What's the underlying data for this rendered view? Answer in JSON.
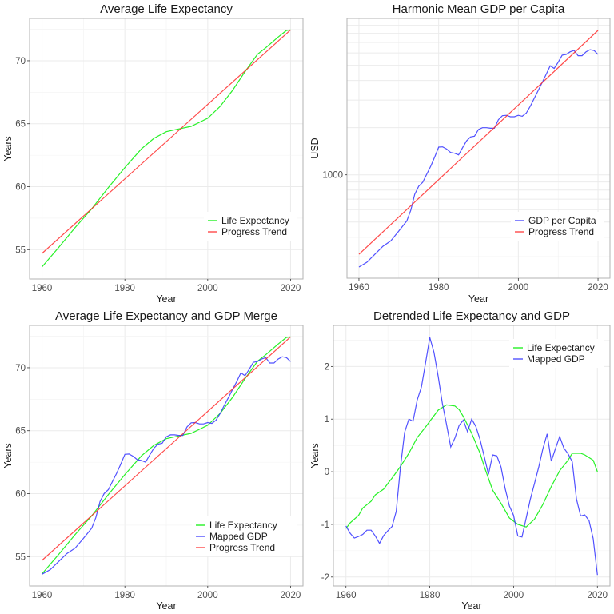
{
  "chart_data": [
    {
      "type": "line",
      "title": "Average Life Expectancy",
      "xlabel": "Year",
      "ylabel": "Years",
      "xlim": [
        1957,
        2023
      ],
      "ylim": [
        52.67,
        73.36
      ],
      "x_ticks": [
        1960,
        1980,
        2000,
        2020
      ],
      "y_ticks": [
        55,
        60,
        65,
        70
      ],
      "grid": true,
      "legend_position": "bottom-right",
      "series": [
        {
          "name": "Life Expectancy",
          "color": "#00ee00",
          "x": [
            1960,
            1964,
            1968,
            1972,
            1976,
            1980,
            1984,
            1987,
            1990,
            1993,
            1996,
            2000,
            2003,
            2006,
            2009,
            2012,
            2014,
            2017,
            2019,
            2020
          ],
          "y": [
            53.63,
            55.17,
            56.76,
            58.24,
            59.93,
            61.52,
            63.0,
            63.84,
            64.37,
            64.58,
            64.79,
            65.43,
            66.38,
            67.65,
            69.13,
            70.51,
            71.03,
            71.88,
            72.41,
            72.45
          ]
        },
        {
          "name": "Progress Trend",
          "color": "#ff2a2a",
          "x": [
            1960,
            2020
          ],
          "y": [
            54.7,
            72.45
          ]
        }
      ]
    },
    {
      "type": "line",
      "title": "Harmonic Mean GDP per Capita",
      "xlabel": "Year",
      "ylabel": "USD",
      "y_scale": "log10",
      "xlim": [
        1957,
        2023
      ],
      "ylim": [
        219,
        9960
      ],
      "x_ticks": [
        1960,
        1980,
        2000,
        2020
      ],
      "y_ticks": [
        1000
      ],
      "grid": true,
      "legend_position": "bottom-right",
      "series": [
        {
          "name": "GDP per Capita",
          "color": "#3333ff",
          "x": [
            1960,
            1962,
            1964,
            1966,
            1968,
            1970,
            1972,
            1973,
            1974,
            1975,
            1976,
            1977,
            1978,
            1979,
            1980,
            1981,
            1982,
            1983,
            1984,
            1985,
            1986,
            1987,
            1988,
            1989,
            1990,
            1991,
            1992,
            1993,
            1994,
            1995,
            1996,
            1997,
            1998,
            1999,
            2000,
            2001,
            2002,
            2003,
            2004,
            2005,
            2006,
            2007,
            2008,
            2009,
            2010,
            2011,
            2012,
            2013,
            2014,
            2015,
            2016,
            2017,
            2018,
            2019,
            2020
          ],
          "y": [
            258,
            277,
            311,
            350,
            379,
            438,
            508,
            594,
            751,
            845,
            896,
            1008,
            1134,
            1300,
            1503,
            1509,
            1462,
            1389,
            1373,
            1341,
            1491,
            1645,
            1744,
            1765,
            1946,
            2000,
            2000,
            1984,
            1984,
            2250,
            2385,
            2400,
            2350,
            2350,
            2400,
            2366,
            2480,
            2740,
            3080,
            3460,
            3890,
            4380,
            4970,
            4780,
            5230,
            5810,
            5870,
            6100,
            6220,
            5760,
            5760,
            6100,
            6290,
            6220,
            5870
          ]
        },
        {
          "name": "Progress Trend",
          "color": "#ff2a2a",
          "x": [
            1960,
            2020
          ],
          "y": [
            311,
            8350
          ]
        }
      ]
    },
    {
      "type": "line",
      "title": "Average Life Expectancy and GDP Merge",
      "xlabel": "Year",
      "ylabel": "Years",
      "xlim": [
        1957,
        2023
      ],
      "ylim": [
        52.67,
        73.36
      ],
      "x_ticks": [
        1960,
        1980,
        2000,
        2020
      ],
      "y_ticks": [
        55,
        60,
        65,
        70
      ],
      "grid": true,
      "legend_position": "bottom-right",
      "series": [
        {
          "name": "Life Expectancy",
          "color": "#00ee00",
          "x": [
            1960,
            1964,
            1968,
            1972,
            1976,
            1980,
            1984,
            1987,
            1990,
            1993,
            1996,
            2000,
            2003,
            2006,
            2009,
            2012,
            2014,
            2017,
            2019,
            2020
          ],
          "y": [
            53.63,
            55.17,
            56.76,
            58.24,
            59.93,
            61.52,
            63.0,
            63.84,
            64.37,
            64.58,
            64.79,
            65.43,
            66.38,
            67.65,
            69.13,
            70.51,
            71.03,
            71.88,
            72.41,
            72.45
          ]
        },
        {
          "name": "Mapped GDP",
          "color": "#3333ff",
          "x": [
            1960,
            1962,
            1964,
            1966,
            1968,
            1970,
            1972,
            1973,
            1974,
            1975,
            1976,
            1977,
            1978,
            1979,
            1980,
            1981,
            1982,
            1983,
            1984,
            1985,
            1986,
            1987,
            1988,
            1989,
            1990,
            1991,
            1992,
            1993,
            1994,
            1995,
            1996,
            1997,
            1998,
            1999,
            2000,
            2001,
            2002,
            2003,
            2004,
            2005,
            2006,
            2007,
            2008,
            2009,
            2010,
            2011,
            2012,
            2013,
            2014,
            2015,
            2016,
            2017,
            2018,
            2019,
            2020
          ],
          "y": [
            53.6,
            53.97,
            54.61,
            55.24,
            55.68,
            56.45,
            57.26,
            58.11,
            59.38,
            60.01,
            60.32,
            60.96,
            61.61,
            62.34,
            63.12,
            63.15,
            62.97,
            62.7,
            62.64,
            62.5,
            63.08,
            63.61,
            63.93,
            64.0,
            64.52,
            64.67,
            64.67,
            64.63,
            64.63,
            65.3,
            65.63,
            65.65,
            65.54,
            65.54,
            65.65,
            65.58,
            65.83,
            66.37,
            67.01,
            67.63,
            68.27,
            68.9,
            69.59,
            69.37,
            69.86,
            70.43,
            70.49,
            70.69,
            70.8,
            70.38,
            70.38,
            70.69,
            70.87,
            70.8,
            70.49
          ]
        },
        {
          "name": "Progress Trend",
          "color": "#ff2a2a",
          "x": [
            1960,
            2020
          ],
          "y": [
            54.7,
            72.45
          ]
        }
      ]
    },
    {
      "type": "line",
      "title": "Detrended Life Expectancy and GDP",
      "xlabel": "Year",
      "ylabel": "Years",
      "xlim": [
        1957,
        2023
      ],
      "ylim": [
        -2.17,
        2.78
      ],
      "x_ticks": [
        1960,
        1980,
        2000,
        2020
      ],
      "y_ticks": [
        -2,
        -1,
        0,
        1,
        2
      ],
      "grid": true,
      "legend_position": "top-right",
      "series": [
        {
          "name": "Life Expectancy",
          "color": "#00ee00",
          "x": [
            1960,
            1961,
            1963,
            1964,
            1966,
            1967,
            1969,
            1970,
            1971,
            1973,
            1975,
            1977,
            1979,
            1980,
            1982,
            1984,
            1986,
            1987,
            1988,
            1990,
            1992,
            1993,
            1995,
            1997,
            1999,
            2001,
            2003,
            2005,
            2007,
            2009,
            2011,
            2013,
            2014,
            2016,
            2017,
            2019,
            2020
          ],
          "y": [
            -1.08,
            -0.97,
            -0.83,
            -0.69,
            -0.56,
            -0.44,
            -0.33,
            -0.22,
            -0.12,
            0.1,
            0.35,
            0.65,
            0.85,
            0.96,
            1.17,
            1.27,
            1.25,
            1.18,
            1.05,
            0.73,
            0.35,
            0.1,
            -0.35,
            -0.6,
            -0.88,
            -1.0,
            -1.05,
            -0.9,
            -0.62,
            -0.28,
            0.02,
            0.22,
            0.35,
            0.35,
            0.32,
            0.22,
            0.0
          ]
        },
        {
          "name": "Mapped GDP",
          "color": "#3333ff",
          "x": [
            1960,
            1961,
            1962,
            1963,
            1964,
            1965,
            1966,
            1967,
            1968,
            1969,
            1970,
            1971,
            1972,
            1973,
            1974,
            1975,
            1976,
            1977,
            1978,
            1979,
            1980,
            1981,
            1982,
            1983,
            1984,
            1985,
            1986,
            1987,
            1988,
            1989,
            1990,
            1991,
            1992,
            1993,
            1994,
            1995,
            1996,
            1997,
            1998,
            1999,
            2000,
            2001,
            2002,
            2003,
            2004,
            2005,
            2006,
            2007,
            2008,
            2009,
            2010,
            2011,
            2012,
            2013,
            2014,
            2015,
            2016,
            2017,
            2018,
            2019,
            2020
          ],
          "y": [
            -1.03,
            -1.17,
            -1.26,
            -1.23,
            -1.19,
            -1.11,
            -1.11,
            -1.22,
            -1.36,
            -1.21,
            -1.12,
            -1.04,
            -0.75,
            0.09,
            0.75,
            1.0,
            0.96,
            1.36,
            1.61,
            2.07,
            2.55,
            2.27,
            1.81,
            1.3,
            0.9,
            0.47,
            0.64,
            0.88,
            0.98,
            0.76,
            1.0,
            0.86,
            0.61,
            0.29,
            -0.05,
            0.32,
            0.3,
            0.09,
            -0.32,
            -0.65,
            -0.83,
            -1.22,
            -1.24,
            -0.88,
            -0.52,
            -0.22,
            0.09,
            0.44,
            0.72,
            0.2,
            0.44,
            0.67,
            0.45,
            0.34,
            0.19,
            -0.52,
            -0.84,
            -0.82,
            -0.93,
            -1.27,
            -1.96
          ]
        }
      ]
    }
  ]
}
